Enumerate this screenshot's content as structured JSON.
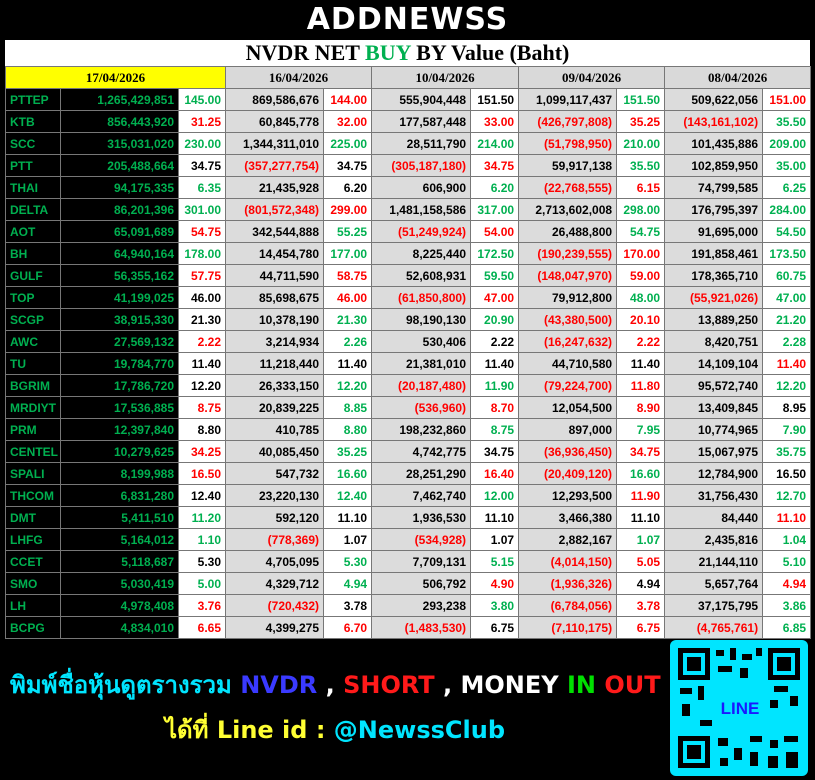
{
  "header": {
    "logo": "ADDNEWSS",
    "title": [
      "NVDR NET ",
      "BUY",
      " BY Value (Baht)"
    ]
  },
  "table": {
    "dates": [
      "17/04/2026",
      "16/04/2026",
      "10/04/2026",
      "09/04/2026",
      "08/04/2026"
    ],
    "rows": [
      [
        "PTTEP",
        "1,265,429,851",
        "145.00",
        "869,586,676",
        "144.00",
        "555,904,448",
        "151.50",
        "1,099,117,437",
        "151.50",
        "509,622,056",
        "151.00"
      ],
      [
        "KTB",
        "856,443,920",
        "31.25",
        "60,845,778",
        "32.00",
        "177,587,448",
        "33.00",
        "(426,797,808)",
        "35.25",
        "(143,161,102)",
        "35.50"
      ],
      [
        "SCC",
        "315,031,020",
        "230.00",
        "1,344,311,010",
        "225.00",
        "28,511,790",
        "214.00",
        "(51,798,950)",
        "210.00",
        "101,435,886",
        "209.00"
      ],
      [
        "PTT",
        "205,488,664",
        "34.75",
        "(357,277,754)",
        "34.75",
        "(305,187,180)",
        "34.75",
        "59,917,138",
        "35.50",
        "102,859,950",
        "35.00"
      ],
      [
        "THAI",
        "94,175,335",
        "6.35",
        "21,435,928",
        "6.20",
        "606,900",
        "6.20",
        "(22,768,555)",
        "6.15",
        "74,799,585",
        "6.25"
      ],
      [
        "DELTA",
        "86,201,396",
        "301.00",
        "(801,572,348)",
        "299.00",
        "1,481,158,586",
        "317.00",
        "2,713,602,008",
        "298.00",
        "176,795,397",
        "284.00"
      ],
      [
        "AOT",
        "65,091,689",
        "54.75",
        "342,544,888",
        "55.25",
        "(51,249,924)",
        "54.00",
        "26,488,800",
        "54.75",
        "91,695,000",
        "54.50"
      ],
      [
        "BH",
        "64,940,164",
        "178.00",
        "14,454,780",
        "177.00",
        "8,225,440",
        "172.50",
        "(190,239,555)",
        "170.00",
        "191,858,461",
        "173.50"
      ],
      [
        "GULF",
        "56,355,162",
        "57.75",
        "44,711,590",
        "58.75",
        "52,608,931",
        "59.50",
        "(148,047,970)",
        "59.00",
        "178,365,710",
        "60.75"
      ],
      [
        "TOP",
        "41,199,025",
        "46.00",
        "85,698,675",
        "46.00",
        "(61,850,800)",
        "47.00",
        "79,912,800",
        "48.00",
        "(55,921,026)",
        "47.00"
      ],
      [
        "SCGP",
        "38,915,330",
        "21.30",
        "10,378,190",
        "21.30",
        "98,190,130",
        "20.90",
        "(43,380,500)",
        "20.10",
        "13,889,250",
        "21.20"
      ],
      [
        "AWC",
        "27,569,132",
        "2.22",
        "3,214,934",
        "2.26",
        "530,406",
        "2.22",
        "(16,247,632)",
        "2.22",
        "8,420,751",
        "2.28"
      ],
      [
        "TU",
        "19,784,770",
        "11.40",
        "11,218,440",
        "11.40",
        "21,381,010",
        "11.40",
        "44,710,580",
        "11.40",
        "14,109,104",
        "11.40"
      ],
      [
        "BGRIM",
        "17,786,720",
        "12.20",
        "26,333,150",
        "12.20",
        "(20,187,480)",
        "11.90",
        "(79,224,700)",
        "11.80",
        "95,572,740",
        "12.20"
      ],
      [
        "MRDIYT",
        "17,536,885",
        "8.75",
        "20,839,225",
        "8.85",
        "(536,960)",
        "8.70",
        "12,054,500",
        "8.90",
        "13,409,845",
        "8.95"
      ],
      [
        "PRM",
        "12,397,840",
        "8.80",
        "410,785",
        "8.80",
        "198,232,860",
        "8.75",
        "897,000",
        "7.95",
        "10,774,965",
        "7.90"
      ],
      [
        "CENTEL",
        "10,279,625",
        "34.25",
        "40,085,450",
        "35.25",
        "4,742,775",
        "34.75",
        "(36,936,450)",
        "34.75",
        "15,067,975",
        "35.75"
      ],
      [
        "SPALI",
        "8,199,988",
        "16.50",
        "547,732",
        "16.60",
        "28,251,290",
        "16.40",
        "(20,409,120)",
        "16.60",
        "12,784,900",
        "16.50"
      ],
      [
        "THCOM",
        "6,831,280",
        "12.40",
        "23,220,130",
        "12.40",
        "7,462,740",
        "12.00",
        "12,293,500",
        "11.90",
        "31,756,430",
        "12.70"
      ],
      [
        "DMT",
        "5,411,510",
        "11.20",
        "592,120",
        "11.10",
        "1,936,530",
        "11.10",
        "3,466,380",
        "11.10",
        "84,440",
        "11.10"
      ],
      [
        "LHFG",
        "5,164,012",
        "1.10",
        "(778,369)",
        "1.07",
        "(534,928)",
        "1.07",
        "2,882,167",
        "1.07",
        "2,435,816",
        "1.04"
      ],
      [
        "CCET",
        "5,118,687",
        "5.30",
        "4,705,095",
        "5.30",
        "7,709,131",
        "5.15",
        "(4,014,150)",
        "5.05",
        "21,144,110",
        "5.10"
      ],
      [
        "SMO",
        "5,030,419",
        "5.00",
        "4,329,712",
        "4.94",
        "506,792",
        "4.90",
        "(1,936,326)",
        "4.94",
        "5,657,764",
        "4.94"
      ],
      [
        "LH",
        "4,978,408",
        "3.76",
        "(720,432)",
        "3.78",
        "293,238",
        "3.80",
        "(6,784,056)",
        "3.78",
        "37,175,795",
        "3.86"
      ],
      [
        "BCPG",
        "4,834,010",
        "6.65",
        "4,399,275",
        "6.70",
        "(1,483,530)",
        "6.75",
        "(7,110,175)",
        "6.75",
        "(4,765,761)",
        "6.85"
      ]
    ],
    "price_colors": [
      [
        "#00b050",
        "#ff0000",
        "#000000",
        "#00b050",
        "#ff0000"
      ],
      [
        "#ff0000",
        "#ff0000",
        "#ff0000",
        "#ff0000",
        "#00b050"
      ],
      [
        "#00b050",
        "#00b050",
        "#00b050",
        "#00b050",
        "#00b050"
      ],
      [
        "#000000",
        "#000000",
        "#ff0000",
        "#00b050",
        "#00b050"
      ],
      [
        "#00b050",
        "#000000",
        "#00b050",
        "#ff0000",
        "#00b050"
      ],
      [
        "#00b050",
        "#ff0000",
        "#00b050",
        "#00b050",
        "#00b050"
      ],
      [
        "#ff0000",
        "#00b050",
        "#ff0000",
        "#00b050",
        "#00b050"
      ],
      [
        "#00b050",
        "#00b050",
        "#00b050",
        "#ff0000",
        "#00b050"
      ],
      [
        "#ff0000",
        "#ff0000",
        "#00b050",
        "#ff0000",
        "#00b050"
      ],
      [
        "#000000",
        "#ff0000",
        "#ff0000",
        "#00b050",
        "#00b050"
      ],
      [
        "#000000",
        "#00b050",
        "#00b050",
        "#ff0000",
        "#00b050"
      ],
      [
        "#ff0000",
        "#00b050",
        "#000000",
        "#ff0000",
        "#00b050"
      ],
      [
        "#000000",
        "#000000",
        "#000000",
        "#000000",
        "#ff0000"
      ],
      [
        "#000000",
        "#00b050",
        "#00b050",
        "#ff0000",
        "#00b050"
      ],
      [
        "#ff0000",
        "#00b050",
        "#ff0000",
        "#ff0000",
        "#000000"
      ],
      [
        "#000000",
        "#00b050",
        "#00b050",
        "#00b050",
        "#00b050"
      ],
      [
        "#ff0000",
        "#00b050",
        "#000000",
        "#ff0000",
        "#00b050"
      ],
      [
        "#ff0000",
        "#00b050",
        "#ff0000",
        "#00b050",
        "#000000"
      ],
      [
        "#000000",
        "#00b050",
        "#00b050",
        "#ff0000",
        "#00b050"
      ],
      [
        "#00b050",
        "#000000",
        "#000000",
        "#000000",
        "#ff0000"
      ],
      [
        "#00b050",
        "#000000",
        "#000000",
        "#00b050",
        "#00b050"
      ],
      [
        "#000000",
        "#00b050",
        "#00b050",
        "#ff0000",
        "#00b050"
      ],
      [
        "#00b050",
        "#00b050",
        "#ff0000",
        "#000000",
        "#ff0000"
      ],
      [
        "#ff0000",
        "#000000",
        "#00b050",
        "#ff0000",
        "#00b050"
      ],
      [
        "#ff0000",
        "#ff0000",
        "#000000",
        "#ff0000",
        "#00b050"
      ]
    ]
  },
  "footer": {
    "line1": [
      {
        "text": "พิมพ์ชื่อหุ้นดูตรางรวม ",
        "color": "#00e5ff"
      },
      {
        "text": "NVDR",
        "color": "#3a3aff"
      },
      {
        "text": " , ",
        "color": "#ffffff"
      },
      {
        "text": "SHORT",
        "color": "#ff1a1a"
      },
      {
        "text": " , MONEY ",
        "color": "#ffffff"
      },
      {
        "text": "IN",
        "color": "#00e000"
      },
      {
        "text": " OUT",
        "color": "#ff1a1a"
      }
    ],
    "line2": [
      {
        "text": "ได้ที่ Line id : ",
        "color": "#ffff33"
      },
      {
        "text": "@NewssClub",
        "color": "#00e5ff"
      }
    ],
    "qr_label": "LINE"
  }
}
